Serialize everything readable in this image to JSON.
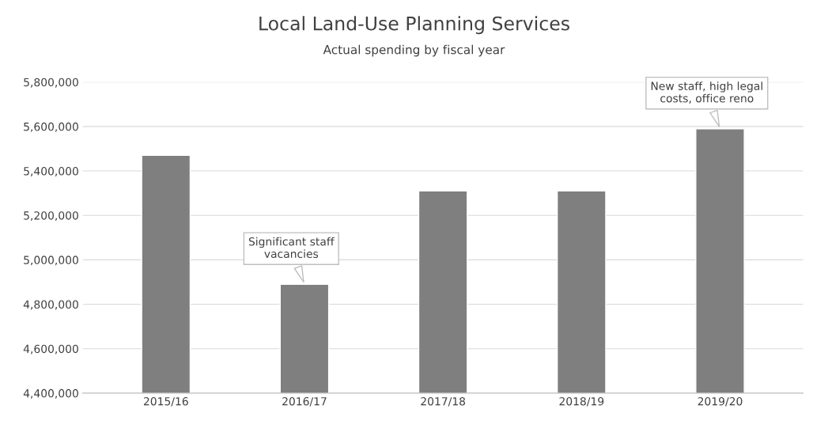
{
  "chart_data": {
    "type": "bar",
    "title": "Local Land-Use Planning Services",
    "subtitle": "Actual spending by fiscal year",
    "categories": [
      "2015/16",
      "2016/17",
      "2017/18",
      "2018/19",
      "2019/20"
    ],
    "values": [
      5470000,
      4890000,
      5310000,
      5310000,
      5590000
    ],
    "color": "#7f7f7f",
    "ylim": [
      4400000,
      5800000
    ],
    "yticks": [
      {
        "value": 4400000,
        "label": "4,400,000"
      },
      {
        "value": 4600000,
        "label": "4,600,000"
      },
      {
        "value": 4800000,
        "label": "4,800,000"
      },
      {
        "value": 5000000,
        "label": "5,000,000"
      },
      {
        "value": 5200000,
        "label": "5,200,000"
      },
      {
        "value": 5400000,
        "label": "5,400,000"
      },
      {
        "value": 5600000,
        "label": "5,600,000"
      },
      {
        "value": 5800000,
        "label": "5,800,000"
      }
    ],
    "grid": "y",
    "annotations": [
      {
        "text": "Significant staff\nvacancies",
        "x": "2016/17",
        "y": 4890000
      },
      {
        "text": "New staff, high legal\ncosts, office reno",
        "x": "2019/20",
        "y": 5590000
      }
    ]
  }
}
